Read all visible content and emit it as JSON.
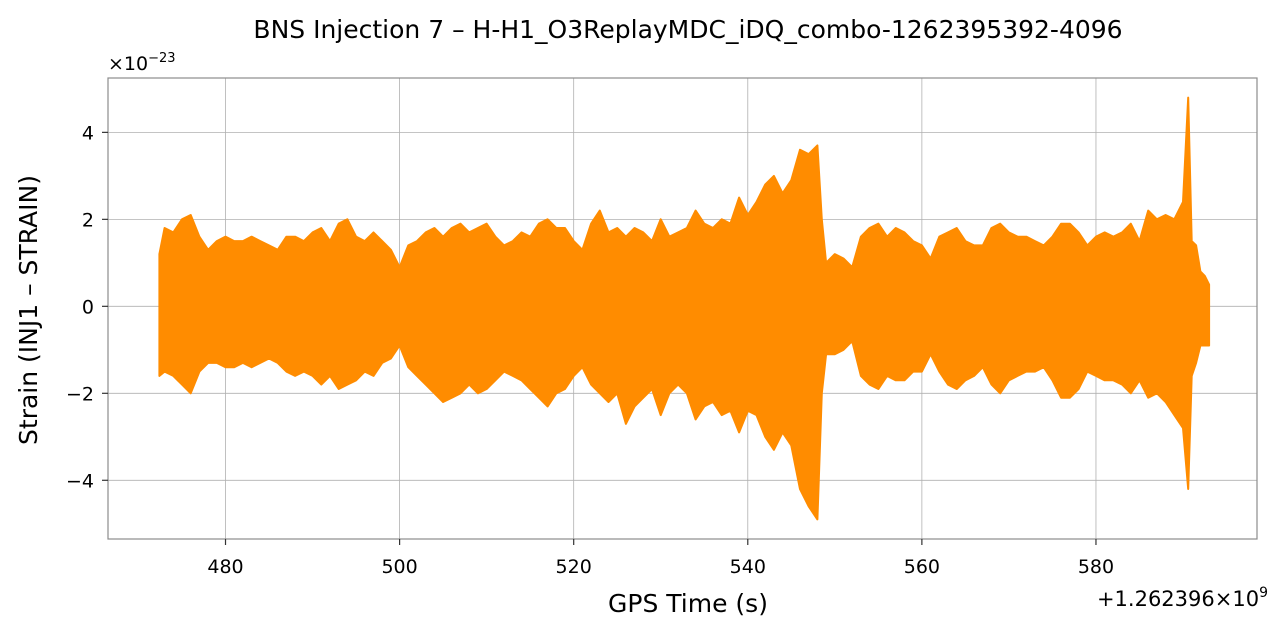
{
  "chart_data": {
    "type": "line",
    "title": "BNS Injection 7 – H-H1_O3ReplayMDC_iDQ_combo-1262395392-4096",
    "xlabel": "GPS Time (s)",
    "ylabel": "Strain (INJ1 – STRAIN)",
    "x_offset_base": "+1.262396",
    "x_offset_exp": "9",
    "y_scale_base": "×10",
    "y_scale_exp": "−23",
    "xlim": [
      466.5,
      598.5
    ],
    "ylim": [
      -5.35,
      5.25
    ],
    "x_ticks": [
      480,
      500,
      520,
      540,
      560,
      580
    ],
    "x_tick_labels": [
      "480",
      "500",
      "520",
      "540",
      "560",
      "580"
    ],
    "y_ticks": [
      -4,
      -2,
      0,
      2,
      4
    ],
    "y_tick_labels": [
      "−4",
      "−2",
      "0",
      "2",
      "4"
    ],
    "grid": true,
    "color": "#ff8c00",
    "series": [
      {
        "x": [
          472.4,
          473,
          474,
          475,
          476,
          477,
          478,
          479,
          480,
          481,
          482,
          483,
          484,
          485,
          486,
          487,
          488,
          489,
          490,
          491,
          492,
          493,
          494,
          495,
          496,
          497,
          498,
          499,
          500,
          501,
          502,
          503,
          504,
          505,
          506,
          507,
          508,
          509,
          510,
          511,
          512,
          513,
          514,
          515,
          516,
          517,
          518,
          519,
          520,
          521,
          522,
          523,
          524,
          525,
          526,
          527,
          528,
          529,
          530,
          531,
          532,
          533,
          534,
          535,
          536,
          537,
          538,
          539,
          540,
          541,
          542,
          543,
          544,
          545,
          546,
          547,
          548,
          548.5,
          549,
          550,
          551,
          552,
          553,
          554,
          555,
          556,
          557,
          558,
          559,
          560,
          561,
          562,
          563,
          564,
          565,
          566,
          567,
          568,
          569,
          570,
          571,
          572,
          573,
          574,
          575,
          576,
          577,
          578,
          579,
          580,
          581,
          582,
          583,
          584,
          585,
          586,
          587,
          588,
          589,
          590,
          590.6,
          591,
          591.5,
          592,
          592.5,
          593
        ],
        "upper": [
          1.2,
          1.8,
          1.7,
          2.0,
          2.1,
          1.6,
          1.3,
          1.5,
          1.6,
          1.5,
          1.5,
          1.6,
          1.5,
          1.4,
          1.3,
          1.6,
          1.6,
          1.5,
          1.7,
          1.8,
          1.5,
          1.9,
          2.0,
          1.6,
          1.5,
          1.7,
          1.5,
          1.3,
          0.9,
          1.4,
          1.5,
          1.7,
          1.8,
          1.6,
          1.8,
          1.9,
          1.7,
          1.8,
          1.9,
          1.6,
          1.4,
          1.5,
          1.7,
          1.6,
          1.9,
          2.0,
          1.8,
          1.8,
          1.5,
          1.3,
          1.9,
          2.2,
          1.7,
          1.8,
          1.6,
          1.8,
          1.7,
          1.5,
          2.0,
          1.6,
          1.7,
          1.8,
          2.2,
          1.9,
          1.8,
          2.0,
          1.9,
          2.5,
          2.1,
          2.4,
          2.8,
          3.0,
          2.6,
          2.9,
          3.6,
          3.5,
          3.7,
          2.0,
          1.0,
          1.2,
          1.1,
          0.9,
          1.6,
          1.8,
          1.9,
          1.6,
          1.8,
          1.7,
          1.5,
          1.4,
          1.1,
          1.6,
          1.7,
          1.8,
          1.5,
          1.4,
          1.4,
          1.8,
          1.9,
          1.7,
          1.6,
          1.6,
          1.5,
          1.4,
          1.6,
          1.9,
          1.9,
          1.7,
          1.4,
          1.6,
          1.7,
          1.6,
          1.7,
          1.9,
          1.5,
          2.2,
          2.0,
          2.1,
          2.0,
          2.4,
          4.8,
          1.5,
          1.4,
          0.8,
          0.7,
          0.5
        ],
        "lower": [
          -1.6,
          -1.5,
          -1.6,
          -1.8,
          -2.0,
          -1.5,
          -1.3,
          -1.3,
          -1.4,
          -1.4,
          -1.3,
          -1.4,
          -1.3,
          -1.2,
          -1.3,
          -1.5,
          -1.6,
          -1.5,
          -1.6,
          -1.8,
          -1.6,
          -1.9,
          -1.8,
          -1.7,
          -1.5,
          -1.6,
          -1.3,
          -1.2,
          -0.9,
          -1.4,
          -1.6,
          -1.8,
          -2.0,
          -2.2,
          -2.1,
          -2.0,
          -1.8,
          -2.0,
          -1.9,
          -1.7,
          -1.5,
          -1.6,
          -1.7,
          -1.9,
          -2.1,
          -2.3,
          -2.0,
          -1.9,
          -1.6,
          -1.4,
          -1.8,
          -2.0,
          -2.2,
          -2.0,
          -2.7,
          -2.3,
          -2.1,
          -1.9,
          -2.5,
          -2.0,
          -1.8,
          -2.0,
          -2.6,
          -2.3,
          -2.2,
          -2.5,
          -2.4,
          -2.9,
          -2.4,
          -2.5,
          -3.0,
          -3.3,
          -2.9,
          -3.2,
          -4.2,
          -4.6,
          -4.9,
          -2.0,
          -1.1,
          -1.1,
          -1.0,
          -0.8,
          -1.6,
          -1.8,
          -1.9,
          -1.6,
          -1.7,
          -1.7,
          -1.5,
          -1.5,
          -1.1,
          -1.5,
          -1.8,
          -1.9,
          -1.7,
          -1.6,
          -1.4,
          -1.8,
          -2.0,
          -1.7,
          -1.6,
          -1.5,
          -1.5,
          -1.4,
          -1.7,
          -2.1,
          -2.1,
          -1.9,
          -1.5,
          -1.6,
          -1.7,
          -1.7,
          -1.8,
          -2.0,
          -1.7,
          -2.1,
          -2.0,
          -2.2,
          -2.5,
          -2.8,
          -4.2,
          -1.6,
          -1.3,
          -0.9,
          -0.9,
          -0.9
        ]
      }
    ]
  }
}
